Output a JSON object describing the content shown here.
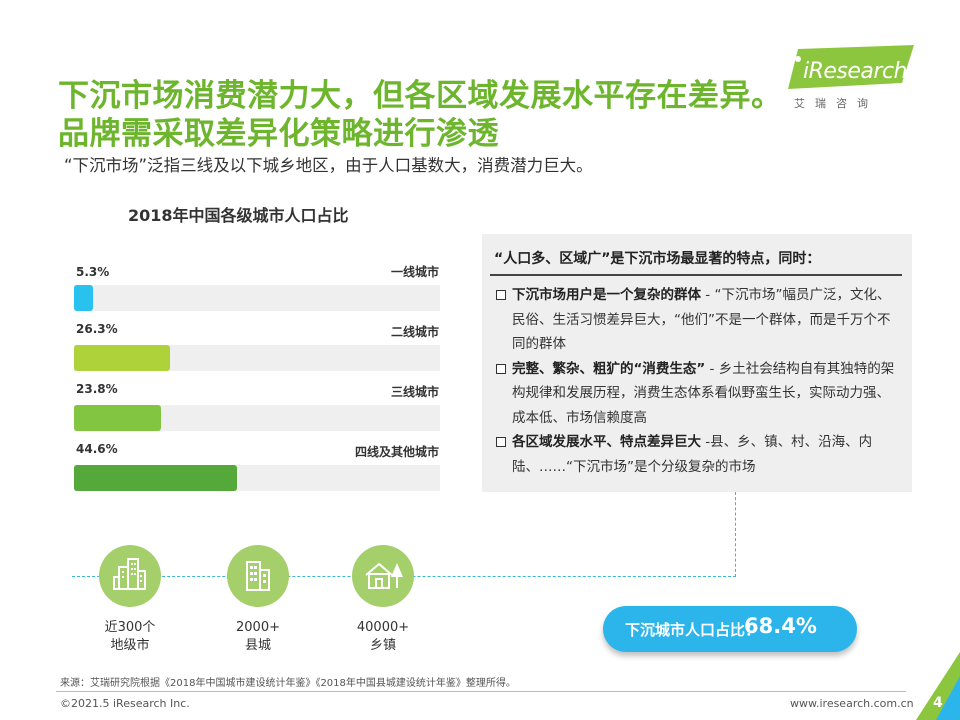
{
  "title_line1": "下沉市场消费潜力大，但各区域发展水平存在差异。",
  "title_line2": "品牌需采取差异化策略进行渗透",
  "subtitle": "“下沉市场”泛指三线及以下城乡地区，由于人口基数大，消费潜力巨大。",
  "logo": {
    "text": "iResearch",
    "cn": "艾瑞咨询"
  },
  "chart_data": {
    "type": "bar",
    "title": "2018年中国各级城市人口占比",
    "categories": [
      "一线城市",
      "二线城市",
      "三线城市",
      "四线及其他城市"
    ],
    "values": [
      5.3,
      26.3,
      23.8,
      44.6
    ],
    "value_labels": [
      "5.3%",
      "26.3%",
      "23.8%",
      "44.6%"
    ],
    "colors": [
      "#29c2ee",
      "#aed23a",
      "#82c540",
      "#55a83a"
    ],
    "unit": "%",
    "xlim": [
      0,
      100
    ]
  },
  "info": {
    "heading": "“人口多、区域广”是下沉市场最显著的特点，同时：",
    "items": [
      {
        "bold": "下沉市场用户是一个复杂的群体",
        "text": " - “下沉市场”幅员广泛，文化、民俗、生活习惯差异巨大，“他们”不是一个群体，而是千万个不同的群体"
      },
      {
        "bold": "完整、繁杂、粗犷的“消费生态”",
        "text": " - 乡土社会结构自有其独特的架构规律和发展历程，消费生态体系看似野蛮生长，实际动力强、成本低、市场信赖度高"
      },
      {
        "bold": "各区域发展水平、特点差异巨大",
        "text": " -县、乡、镇、村、沿海、内陆、……“下沉市场”是个分级复杂的市场"
      }
    ]
  },
  "units": [
    {
      "icon": "city-buildings-icon",
      "line1": "近300个",
      "line2": "地级市"
    },
    {
      "icon": "building-icon",
      "line1": "2000+",
      "line2": "县城"
    },
    {
      "icon": "house-tree-icon",
      "line1": "40000+",
      "line2": "乡镇"
    }
  ],
  "highlight": {
    "label": "下沉城市人口占比：",
    "value": "68.4%"
  },
  "footer": {
    "source": "来源：艾瑞研究院根据《2018年中国城市建设统计年鉴》《2018年中国县城建设统计年鉴》整理所得。",
    "copyright": "©2021.5 iResearch Inc.",
    "website": "www.iresearch.com.cn",
    "page": "4"
  },
  "colors": {
    "title_green": "#6cb52d",
    "accent_blue": "#2bb5ea",
    "circle_green": "#a4cf6b"
  }
}
